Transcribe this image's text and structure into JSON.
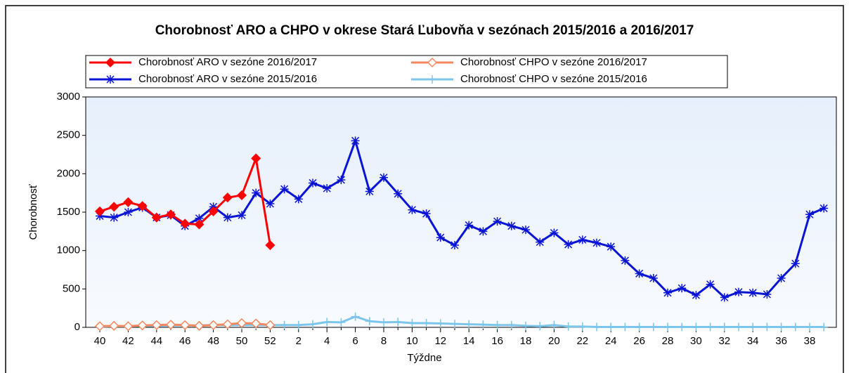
{
  "chart_data": {
    "type": "line",
    "title": "Chorobnosť ARO a CHPO v okrese Stará Ľubovňa v sezónach 2015/2016 a 2016/2017",
    "xlabel": "Týždne",
    "ylabel": "Chorobnosť",
    "categories": [
      "40",
      null,
      "42",
      null,
      "44",
      null,
      "46",
      null,
      "48",
      null,
      "50",
      null,
      "52",
      null,
      "2",
      null,
      "4",
      null,
      "6",
      null,
      "8",
      null,
      "10",
      null,
      "12",
      null,
      "14",
      null,
      "16",
      null,
      "18",
      null,
      "20",
      null,
      "22",
      null,
      "24",
      null,
      "26",
      null,
      "28",
      null,
      "30",
      null,
      "32",
      null,
      "34",
      null,
      "36",
      null,
      "38",
      null
    ],
    "ylim": [
      0,
      3000
    ],
    "yticks": [
      0,
      500,
      1000,
      1500,
      2000,
      2500,
      3000
    ],
    "series": [
      {
        "name": "Chorobnosť ARO v sezóne 2016/2017",
        "color": "#ff0000",
        "marker": "diamond",
        "values": [
          1510,
          1570,
          1630,
          1580,
          1430,
          1470,
          1350,
          1340,
          1510,
          1690,
          1720,
          2200,
          1070,
          null,
          null,
          null,
          null,
          null,
          null,
          null,
          null,
          null,
          null,
          null,
          null,
          null,
          null,
          null,
          null,
          null,
          null,
          null,
          null,
          null,
          null,
          null,
          null,
          null,
          null,
          null,
          null,
          null,
          null,
          null,
          null,
          null,
          null,
          null,
          null,
          null,
          null,
          null
        ]
      },
      {
        "name": "Chorobnosť CHPO v sezóne 2016/2017",
        "color": "#f4885c",
        "marker": "hollow-diamond",
        "values": [
          15,
          20,
          15,
          25,
          30,
          35,
          30,
          20,
          30,
          40,
          55,
          50,
          30,
          null,
          null,
          null,
          null,
          null,
          null,
          null,
          null,
          null,
          null,
          null,
          null,
          null,
          null,
          null,
          null,
          null,
          null,
          null,
          null,
          null,
          null,
          null,
          null,
          null,
          null,
          null,
          null,
          null,
          null,
          null,
          null,
          null,
          null,
          null,
          null,
          null,
          null,
          null
        ]
      },
      {
        "name": "Chorobnosť ARO v sezóne 2015/2016",
        "color": "#0a14d4",
        "marker": "asterisk",
        "values": [
          1450,
          1430,
          1500,
          1560,
          1430,
          1460,
          1320,
          1420,
          1570,
          1430,
          1460,
          1750,
          1610,
          1800,
          1670,
          1880,
          1810,
          1920,
          2430,
          1770,
          1950,
          1740,
          1530,
          1480,
          1170,
          1070,
          1330,
          1250,
          1380,
          1320,
          1270,
          1110,
          1230,
          1080,
          1140,
          1100,
          1050,
          870,
          700,
          640,
          450,
          510,
          420,
          560,
          390,
          460,
          450,
          430,
          640,
          830,
          1470,
          1550
        ]
      },
      {
        "name": "Chorobnosť CHPO v sezóne 2015/2016",
        "color": "#7cc6ec",
        "marker": "plus",
        "values": [
          10,
          15,
          15,
          20,
          20,
          25,
          25,
          25,
          30,
          30,
          30,
          30,
          30,
          30,
          30,
          40,
          70,
          65,
          140,
          80,
          65,
          70,
          55,
          55,
          50,
          45,
          40,
          35,
          30,
          30,
          20,
          15,
          30,
          10,
          10,
          5,
          5,
          5,
          5,
          5,
          5,
          5,
          5,
          5,
          5,
          5,
          5,
          5,
          5,
          5,
          5,
          5
        ]
      }
    ],
    "legend": "top"
  }
}
